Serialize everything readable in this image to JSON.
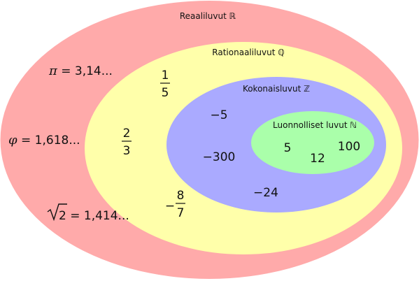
{
  "sets": {
    "reals": {
      "label": "Reaaliluvut ℝ",
      "color": "#ffaaaa"
    },
    "rationals": {
      "label": "Rationaaliluvut ℚ",
      "color": "#ffffaa"
    },
    "integers": {
      "label": "Kokonaisluvut ℤ",
      "color": "#aaaaff"
    },
    "naturals": {
      "label": "Luonnolliset luvut ℕ",
      "color": "#aaffaa"
    }
  },
  "reals_examples": {
    "pi": {
      "symbol": "π",
      "rest": " = 3,14..."
    },
    "phi": {
      "symbol": "φ",
      "rest": " = 1,618..."
    },
    "sqrt2": {
      "radicand": "2",
      "rest": " = 1,414..."
    }
  },
  "rationals_examples": {
    "one_fifth": {
      "num": "1",
      "den": "5"
    },
    "two_thirds": {
      "num": "2",
      "den": "3"
    },
    "neg_eight_sevenths": {
      "sign": "−",
      "num": "8",
      "den": "7"
    }
  },
  "integers_examples": {
    "neg5": "−5",
    "neg300": "−300",
    "neg24": "−24"
  },
  "naturals_examples": {
    "five": "5",
    "twelve": "12",
    "hundred": "100"
  }
}
